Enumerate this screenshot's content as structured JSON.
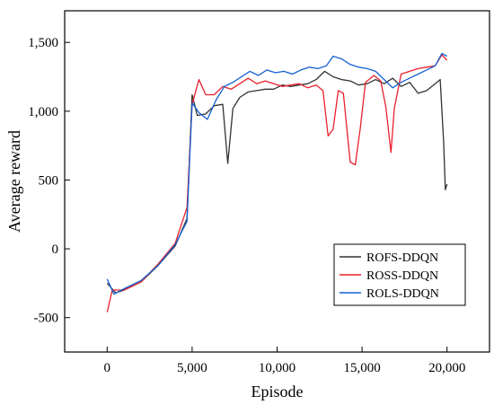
{
  "chart_data": {
    "type": "line",
    "title": "",
    "xlabel": "Episode",
    "ylabel": "Average reward",
    "xlim": [
      -2500,
      22500
    ],
    "ylim": [
      -750,
      1730
    ],
    "xticks": [
      0,
      5000,
      10000,
      15000,
      20000
    ],
    "xtick_labels": [
      "0",
      "5,000",
      "10,000",
      "15,000",
      "20,000"
    ],
    "yticks": [
      -500,
      0,
      500,
      1000,
      1500
    ],
    "ytick_labels": [
      "-500",
      "0",
      "500",
      "1,000",
      "1,500"
    ],
    "grid": false,
    "legend_position": "lower-right",
    "series": [
      {
        "name": "ROFS-DDQN",
        "color": "#333333",
        "points": [
          [
            0,
            -250
          ],
          [
            500,
            -320
          ],
          [
            1000,
            -300
          ],
          [
            2000,
            -240
          ],
          [
            3000,
            -120
          ],
          [
            4000,
            20
          ],
          [
            4700,
            220
          ],
          [
            5000,
            1120
          ],
          [
            5300,
            970
          ],
          [
            5800,
            980
          ],
          [
            6300,
            1040
          ],
          [
            6800,
            1050
          ],
          [
            7100,
            620
          ],
          [
            7400,
            1020
          ],
          [
            7800,
            1100
          ],
          [
            8300,
            1140
          ],
          [
            8800,
            1150
          ],
          [
            9300,
            1160
          ],
          [
            9800,
            1160
          ],
          [
            10300,
            1190
          ],
          [
            10800,
            1180
          ],
          [
            11300,
            1190
          ],
          [
            11800,
            1200
          ],
          [
            12300,
            1230
          ],
          [
            12800,
            1290
          ],
          [
            13300,
            1250
          ],
          [
            13800,
            1230
          ],
          [
            14300,
            1220
          ],
          [
            14800,
            1190
          ],
          [
            15300,
            1200
          ],
          [
            15800,
            1230
          ],
          [
            16300,
            1200
          ],
          [
            16800,
            1240
          ],
          [
            17300,
            1180
          ],
          [
            17800,
            1210
          ],
          [
            18300,
            1130
          ],
          [
            18800,
            1150
          ],
          [
            19300,
            1200
          ],
          [
            19600,
            1230
          ],
          [
            19800,
            780
          ],
          [
            19900,
            430
          ],
          [
            20000,
            470
          ]
        ]
      },
      {
        "name": "ROSS-DDQN",
        "color": "#e8212e",
        "points": [
          [
            0,
            -460
          ],
          [
            300,
            -300
          ],
          [
            1000,
            -300
          ],
          [
            2000,
            -240
          ],
          [
            3000,
            -110
          ],
          [
            4000,
            40
          ],
          [
            4700,
            300
          ],
          [
            5000,
            1050
          ],
          [
            5400,
            1230
          ],
          [
            5800,
            1120
          ],
          [
            6300,
            1120
          ],
          [
            6800,
            1180
          ],
          [
            7300,
            1160
          ],
          [
            7800,
            1200
          ],
          [
            8300,
            1240
          ],
          [
            8800,
            1200
          ],
          [
            9300,
            1220
          ],
          [
            9800,
            1200
          ],
          [
            10300,
            1180
          ],
          [
            10800,
            1190
          ],
          [
            11300,
            1200
          ],
          [
            11800,
            1170
          ],
          [
            12300,
            1190
          ],
          [
            12700,
            1150
          ],
          [
            13000,
            820
          ],
          [
            13300,
            870
          ],
          [
            13600,
            1150
          ],
          [
            13900,
            1130
          ],
          [
            14300,
            630
          ],
          [
            14600,
            610
          ],
          [
            14900,
            880
          ],
          [
            15200,
            1210
          ],
          [
            15700,
            1260
          ],
          [
            16100,
            1220
          ],
          [
            16400,
            1030
          ],
          [
            16700,
            700
          ],
          [
            16900,
            1020
          ],
          [
            17300,
            1270
          ],
          [
            17800,
            1290
          ],
          [
            18300,
            1310
          ],
          [
            18800,
            1320
          ],
          [
            19300,
            1330
          ],
          [
            19700,
            1410
          ],
          [
            20000,
            1370
          ]
        ]
      },
      {
        "name": "ROLS-DDQN",
        "color": "#1560d0",
        "points": [
          [
            0,
            -220
          ],
          [
            400,
            -330
          ],
          [
            1000,
            -290
          ],
          [
            2000,
            -230
          ],
          [
            3000,
            -120
          ],
          [
            4000,
            30
          ],
          [
            4700,
            200
          ],
          [
            5000,
            1060
          ],
          [
            5400,
            990
          ],
          [
            5900,
            940
          ],
          [
            6400,
            1080
          ],
          [
            6900,
            1180
          ],
          [
            7400,
            1210
          ],
          [
            7900,
            1250
          ],
          [
            8400,
            1290
          ],
          [
            8900,
            1260
          ],
          [
            9400,
            1300
          ],
          [
            9900,
            1280
          ],
          [
            10400,
            1290
          ],
          [
            10900,
            1270
          ],
          [
            11400,
            1300
          ],
          [
            11900,
            1320
          ],
          [
            12400,
            1310
          ],
          [
            12900,
            1330
          ],
          [
            13300,
            1400
          ],
          [
            13800,
            1380
          ],
          [
            14300,
            1340
          ],
          [
            14800,
            1320
          ],
          [
            15300,
            1310
          ],
          [
            15800,
            1290
          ],
          [
            16300,
            1230
          ],
          [
            16800,
            1170
          ],
          [
            17300,
            1210
          ],
          [
            17800,
            1240
          ],
          [
            18300,
            1270
          ],
          [
            18800,
            1300
          ],
          [
            19300,
            1330
          ],
          [
            19700,
            1420
          ],
          [
            20000,
            1400
          ]
        ]
      }
    ]
  }
}
